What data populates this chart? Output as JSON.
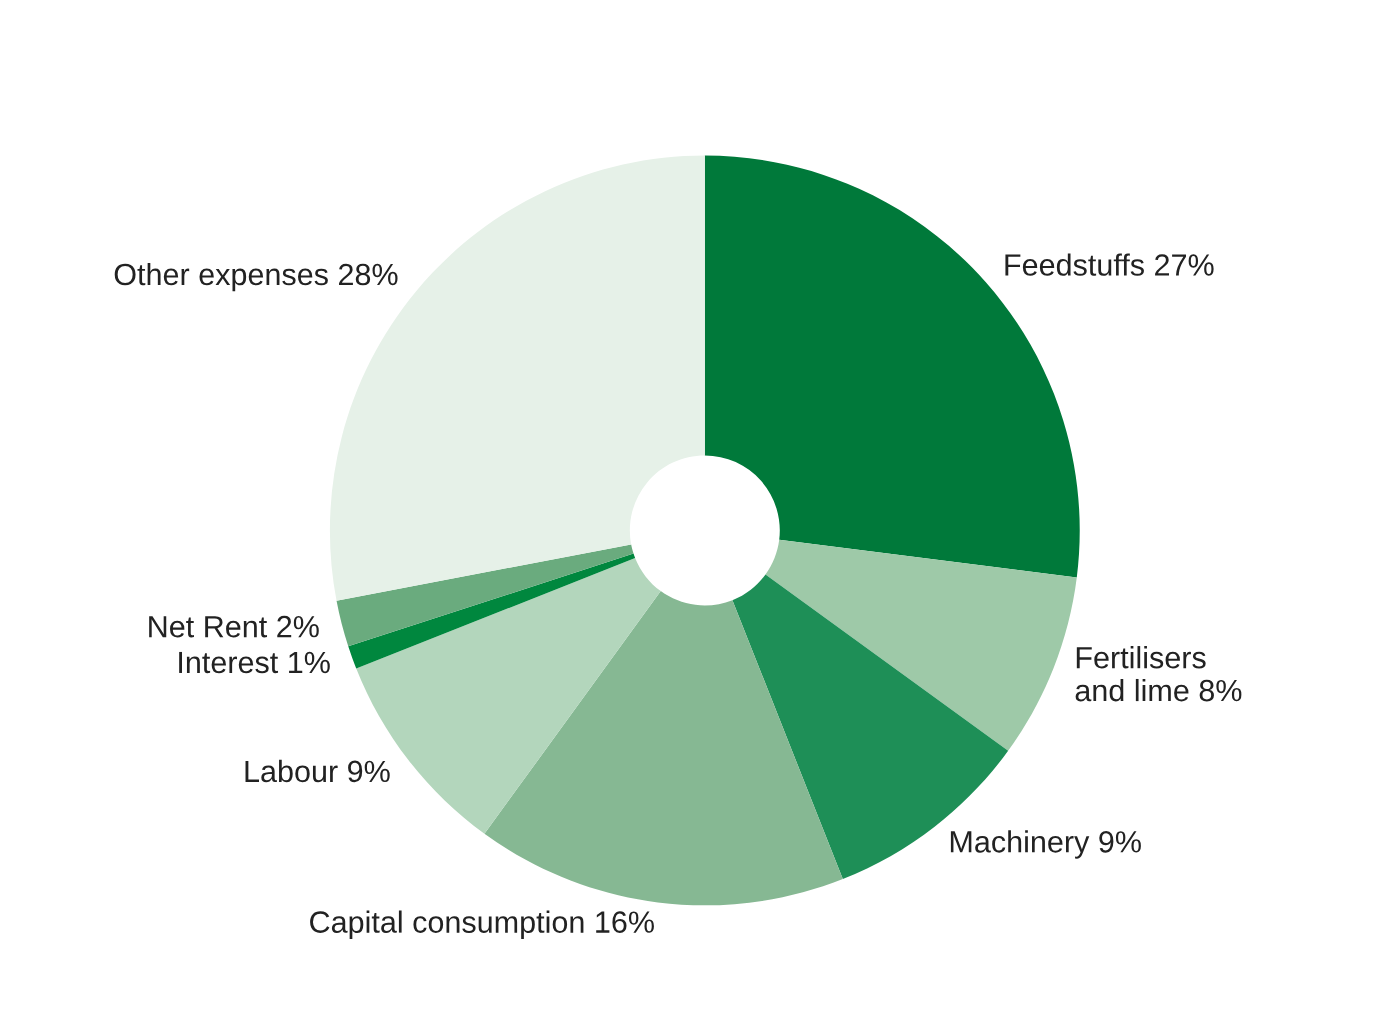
{
  "chart_data": {
    "type": "donut",
    "categories": [
      "Feedstuffs",
      "Fertilisers\nand lime",
      "Machinery",
      "Capital consumption",
      "Labour",
      "Interest",
      "Net Rent",
      "Other expenses"
    ],
    "values": [
      27,
      8,
      9,
      16,
      9,
      1,
      2,
      28
    ],
    "value_labels": [
      "27%",
      "8%",
      "9%",
      "16%",
      "9%",
      "1%",
      "2%",
      "28%"
    ],
    "colors": [
      "#00793a",
      "#9ec9a8",
      "#1e8f57",
      "#86b893",
      "#b3d6bc",
      "#00873e",
      "#6aab7e",
      "#e6f1e8"
    ],
    "legend": false
  }
}
